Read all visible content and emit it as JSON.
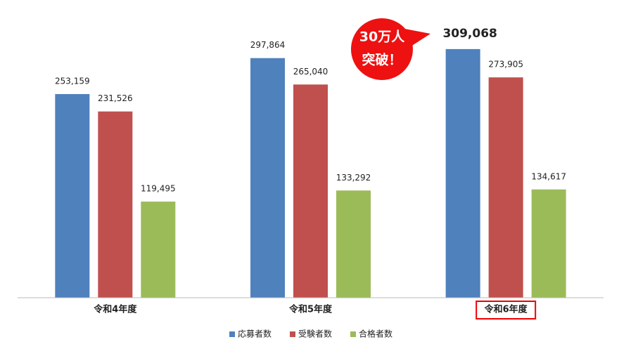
{
  "chart_data": {
    "type": "bar",
    "categories": [
      "令和4年度",
      "令和5年度",
      "令和6年度"
    ],
    "series": [
      {
        "name": "応募者数",
        "color": "#4f81bd",
        "values": [
          253159,
          297864,
          309068
        ],
        "value_labels": [
          "253,159",
          "297,864",
          "309,068"
        ]
      },
      {
        "name": "受験者数",
        "color": "#c0504d",
        "values": [
          231526,
          265040,
          273905
        ],
        "value_labels": [
          "231,526",
          "265,040",
          "273,905"
        ]
      },
      {
        "name": "合格者数",
        "color": "#9bbb59",
        "values": [
          119495,
          133292,
          134617
        ],
        "value_labels": [
          "119,495",
          "133,292",
          "134,617"
        ]
      }
    ],
    "ylim": [
      0,
      350000
    ],
    "highlight_category": 2,
    "annotation": [
      "30万人",
      "突破！"
    ],
    "legend": "bottom"
  }
}
